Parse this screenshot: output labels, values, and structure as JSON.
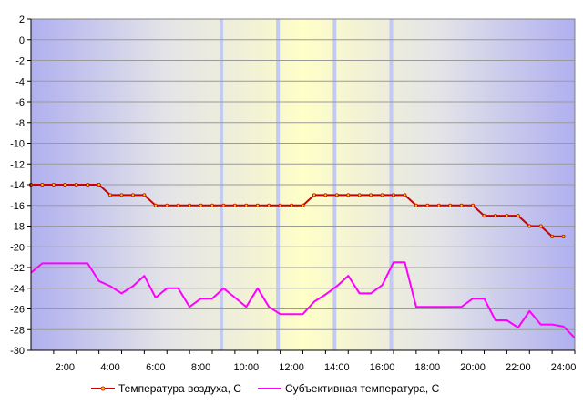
{
  "chart_data": {
    "type": "line",
    "title": "",
    "xlabel": "",
    "ylabel": "",
    "ylim": [
      -30,
      2
    ],
    "yticks": [
      2,
      0,
      -2,
      -4,
      -6,
      -8,
      -10,
      -12,
      -14,
      -16,
      -18,
      -20,
      -22,
      -24,
      -26,
      -28,
      -30
    ],
    "xlim": [
      0.5,
      24.5
    ],
    "xticks": [
      {
        "x": 2,
        "label": "2:00"
      },
      {
        "x": 4,
        "label": "4:00"
      },
      {
        "x": 6,
        "label": "6:00"
      },
      {
        "x": 8,
        "label": "8:00"
      },
      {
        "x": 10,
        "label": "10:00"
      },
      {
        "x": 12,
        "label": "12:00"
      },
      {
        "x": 14,
        "label": "14:00"
      },
      {
        "x": 16,
        "label": "16:00"
      },
      {
        "x": 18,
        "label": "18:00"
      },
      {
        "x": 20,
        "label": "20:00"
      },
      {
        "x": 22,
        "label": "22:00"
      },
      {
        "x": 24,
        "label": "24:00"
      }
    ],
    "vertical_markers": [
      8.9,
      11.4,
      13.9,
      16.4
    ],
    "grid": true,
    "legend_position": "bottom",
    "series": [
      {
        "name": "Температура воздуха, С",
        "color": "#cc0000",
        "markers": true,
        "points": [
          [
            0.5,
            -14
          ],
          [
            1.0,
            -14
          ],
          [
            1.5,
            -14
          ],
          [
            2.0,
            -14
          ],
          [
            2.5,
            -14
          ],
          [
            3.0,
            -14
          ],
          [
            3.5,
            -14
          ],
          [
            4.0,
            -15
          ],
          [
            4.5,
            -15
          ],
          [
            5.0,
            -15
          ],
          [
            5.5,
            -15
          ],
          [
            6.0,
            -16
          ],
          [
            6.5,
            -16
          ],
          [
            7.0,
            -16
          ],
          [
            7.5,
            -16
          ],
          [
            8.0,
            -16
          ],
          [
            8.5,
            -16
          ],
          [
            9.0,
            -16
          ],
          [
            9.5,
            -16
          ],
          [
            10.0,
            -16
          ],
          [
            10.5,
            -16
          ],
          [
            11.0,
            -16
          ],
          [
            11.5,
            -16
          ],
          [
            12.0,
            -16
          ],
          [
            12.5,
            -16
          ],
          [
            13.0,
            -15
          ],
          [
            13.5,
            -15
          ],
          [
            14.0,
            -15
          ],
          [
            14.5,
            -15
          ],
          [
            15.0,
            -15
          ],
          [
            15.5,
            -15
          ],
          [
            16.0,
            -15
          ],
          [
            16.5,
            -15
          ],
          [
            17.0,
            -15
          ],
          [
            17.5,
            -16
          ],
          [
            18.0,
            -16
          ],
          [
            18.5,
            -16
          ],
          [
            19.0,
            -16
          ],
          [
            19.5,
            -16
          ],
          [
            20.0,
            -16
          ],
          [
            20.5,
            -17
          ],
          [
            21.0,
            -17
          ],
          [
            21.5,
            -17
          ],
          [
            22.0,
            -17
          ],
          [
            22.5,
            -18
          ],
          [
            23.0,
            -18
          ],
          [
            23.5,
            -19
          ],
          [
            24.0,
            -19
          ]
        ]
      },
      {
        "name": "Субъективная температура, С",
        "color": "#ff00ff",
        "markers": false,
        "points": [
          [
            0.5,
            -22.5
          ],
          [
            1.0,
            -21.6
          ],
          [
            1.5,
            -21.6
          ],
          [
            2.0,
            -21.6
          ],
          [
            2.5,
            -21.6
          ],
          [
            3.0,
            -21.6
          ],
          [
            3.5,
            -23.3
          ],
          [
            4.0,
            -23.8
          ],
          [
            4.5,
            -24.5
          ],
          [
            5.0,
            -23.8
          ],
          [
            5.5,
            -22.8
          ],
          [
            6.0,
            -24.9
          ],
          [
            6.5,
            -24.0
          ],
          [
            7.0,
            -24.0
          ],
          [
            7.5,
            -25.8
          ],
          [
            8.0,
            -25.0
          ],
          [
            8.5,
            -25.0
          ],
          [
            9.0,
            -24.0
          ],
          [
            9.5,
            -24.9
          ],
          [
            10.0,
            -25.8
          ],
          [
            10.5,
            -24.0
          ],
          [
            11.0,
            -25.8
          ],
          [
            11.5,
            -26.5
          ],
          [
            12.0,
            -26.5
          ],
          [
            12.5,
            -26.5
          ],
          [
            13.0,
            -25.3
          ],
          [
            13.5,
            -24.6
          ],
          [
            14.0,
            -23.8
          ],
          [
            14.5,
            -22.8
          ],
          [
            15.0,
            -24.5
          ],
          [
            15.5,
            -24.5
          ],
          [
            16.0,
            -23.7
          ],
          [
            16.5,
            -21.5
          ],
          [
            17.0,
            -21.5
          ],
          [
            17.5,
            -25.8
          ],
          [
            18.0,
            -25.8
          ],
          [
            18.5,
            -25.8
          ],
          [
            19.0,
            -25.8
          ],
          [
            19.5,
            -25.8
          ],
          [
            20.0,
            -25.0
          ],
          [
            20.5,
            -25.0
          ],
          [
            21.0,
            -27.1
          ],
          [
            21.5,
            -27.1
          ],
          [
            22.0,
            -27.8
          ],
          [
            22.5,
            -26.2
          ],
          [
            23.0,
            -27.5
          ],
          [
            23.5,
            -27.5
          ],
          [
            24.0,
            -27.7
          ],
          [
            24.5,
            -28.8
          ]
        ]
      }
    ]
  }
}
